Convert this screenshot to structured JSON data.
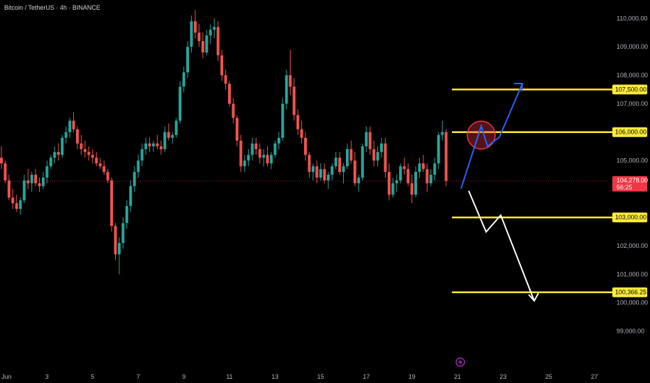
{
  "header": {
    "title": "Bitcoin / TetherUS · 4h · BINANCE"
  },
  "colors": {
    "up": "#26a69a",
    "down": "#ef5350",
    "level": "#ffeb3b",
    "bull_path": "#2962ff",
    "bear_path": "#ffffff",
    "marker": "#f23645",
    "current": "#f23645"
  },
  "current_price": {
    "price": "104,278.00",
    "countdown": "56:25",
    "value": 104278
  },
  "chart_data": {
    "type": "candlestick",
    "symbol": "BTCUSDT",
    "timeframe": "4h",
    "exchange": "BINANCE",
    "ylim": [
      98400,
      110500
    ],
    "price_ticks": [
      {
        "value": 110000,
        "label": "110,000.00"
      },
      {
        "value": 109000,
        "label": "109,000.00"
      },
      {
        "value": 108000,
        "label": "108,000.00"
      },
      {
        "value": 107000,
        "label": "107,000.00"
      },
      {
        "value": 105000,
        "label": "105,000.00"
      },
      {
        "value": 102000,
        "label": "102,000.00"
      },
      {
        "value": 101000,
        "label": "101,000.00"
      },
      {
        "value": 100000,
        "label": "100,000.00"
      },
      {
        "value": 99000,
        "label": "99,000.00"
      }
    ],
    "time_ticks": [
      {
        "index": 0,
        "label": "Jun"
      },
      {
        "index": 12,
        "label": "3"
      },
      {
        "index": 24,
        "label": "5"
      },
      {
        "index": 36,
        "label": "7"
      },
      {
        "index": 48,
        "label": "9"
      },
      {
        "index": 60,
        "label": "11"
      },
      {
        "index": 72,
        "label": "13"
      },
      {
        "index": 84,
        "label": "15"
      },
      {
        "index": 96,
        "label": "17"
      },
      {
        "index": 108,
        "label": "19"
      },
      {
        "index": 120,
        "label": "21"
      },
      {
        "index": 132,
        "label": "23"
      },
      {
        "index": 144,
        "label": "25"
      },
      {
        "index": 156,
        "label": "27"
      }
    ],
    "levels": [
      {
        "value": 107500,
        "label": "107,500.00"
      },
      {
        "value": 106000,
        "label": "106,000.00"
      },
      {
        "value": 103000,
        "label": "103,000.00"
      },
      {
        "value": 100366.25,
        "label": "100,366.25"
      }
    ],
    "candles_ohlc": [
      [
        105100,
        105500,
        104700,
        104900
      ],
      [
        104900,
        105000,
        104200,
        104300
      ],
      [
        104300,
        104500,
        103600,
        103700
      ],
      [
        103700,
        104000,
        103300,
        103500
      ],
      [
        103500,
        103800,
        103200,
        103300
      ],
      [
        103300,
        103700,
        103100,
        103600
      ],
      [
        103600,
        104500,
        103500,
        104300
      ],
      [
        104300,
        104700,
        104000,
        104200
      ],
      [
        104200,
        104600,
        103900,
        104500
      ],
      [
        104500,
        104700,
        104100,
        104200
      ],
      [
        104200,
        104400,
        103900,
        104100
      ],
      [
        104100,
        104600,
        104000,
        104400
      ],
      [
        104400,
        105000,
        104200,
        104800
      ],
      [
        104800,
        105200,
        104700,
        105100
      ],
      [
        105100,
        105500,
        104900,
        105300
      ],
      [
        105300,
        105600,
        105000,
        105200
      ],
      [
        105200,
        105900,
        105100,
        105800
      ],
      [
        105800,
        106200,
        105600,
        106000
      ],
      [
        106000,
        106500,
        105800,
        106400
      ],
      [
        106400,
        106700,
        106000,
        106100
      ],
      [
        106100,
        106200,
        105400,
        105600
      ],
      [
        105600,
        105900,
        105200,
        105400
      ],
      [
        105400,
        105700,
        105100,
        105300
      ],
      [
        105300,
        105500,
        105000,
        105200
      ],
      [
        105200,
        105400,
        104900,
        105100
      ],
      [
        105100,
        105300,
        104800,
        104900
      ],
      [
        104900,
        105100,
        104700,
        104800
      ],
      [
        104800,
        105000,
        104500,
        104600
      ],
      [
        104600,
        104700,
        104200,
        104300
      ],
      [
        104300,
        104400,
        102500,
        102700
      ],
      [
        102700,
        102800,
        101500,
        101700
      ],
      [
        101700,
        102300,
        101000,
        102100
      ],
      [
        102100,
        103000,
        101900,
        102800
      ],
      [
        102800,
        103600,
        102600,
        103400
      ],
      [
        103400,
        104300,
        103200,
        104100
      ],
      [
        104100,
        104800,
        103900,
        104600
      ],
      [
        104600,
        105200,
        104400,
        105000
      ],
      [
        105000,
        105600,
        104800,
        105400
      ],
      [
        105400,
        105800,
        105200,
        105600
      ],
      [
        105600,
        105800,
        105300,
        105500
      ],
      [
        105500,
        105700,
        105300,
        105600
      ],
      [
        105600,
        105900,
        105400,
        105500
      ],
      [
        105500,
        105700,
        105200,
        105400
      ],
      [
        105400,
        106200,
        105300,
        106000
      ],
      [
        106000,
        106300,
        105700,
        105800
      ],
      [
        105800,
        106000,
        105600,
        105900
      ],
      [
        105900,
        106500,
        105800,
        106400
      ],
      [
        106400,
        107800,
        106300,
        107600
      ],
      [
        107600,
        108300,
        107400,
        108100
      ],
      [
        108100,
        109200,
        107900,
        109000
      ],
      [
        109000,
        110100,
        108800,
        109900
      ],
      [
        109900,
        110300,
        109300,
        109500
      ],
      [
        109500,
        109800,
        109000,
        109200
      ],
      [
        109200,
        109500,
        108600,
        108800
      ],
      [
        108800,
        109600,
        108700,
        109400
      ],
      [
        109400,
        109800,
        109100,
        109600
      ],
      [
        109600,
        110000,
        109300,
        109700
      ],
      [
        109700,
        109900,
        108500,
        108700
      ],
      [
        108700,
        108900,
        107800,
        108000
      ],
      [
        108000,
        108200,
        107500,
        107700
      ],
      [
        107700,
        107800,
        106900,
        107000
      ],
      [
        107000,
        107200,
        106300,
        106500
      ],
      [
        106500,
        106600,
        105500,
        105700
      ],
      [
        105700,
        105900,
        104600,
        104800
      ],
      [
        104800,
        105200,
        104600,
        105000
      ],
      [
        105000,
        105400,
        104800,
        105200
      ],
      [
        105200,
        105800,
        105000,
        105600
      ],
      [
        105600,
        105800,
        105200,
        105400
      ],
      [
        105400,
        105600,
        104900,
        105100
      ],
      [
        105100,
        105400,
        104800,
        105200
      ],
      [
        105200,
        105500,
        104800,
        104900
      ],
      [
        104900,
        105300,
        104700,
        105200
      ],
      [
        105200,
        105700,
        105100,
        105600
      ],
      [
        105600,
        106000,
        105400,
        105800
      ],
      [
        105800,
        107200,
        105700,
        107000
      ],
      [
        107000,
        108200,
        106800,
        108000
      ],
      [
        108000,
        108900,
        107300,
        107600
      ],
      [
        107600,
        107900,
        106400,
        106600
      ],
      [
        106600,
        106800,
        105900,
        106100
      ],
      [
        106100,
        106400,
        105600,
        105800
      ],
      [
        105800,
        106000,
        105000,
        105200
      ],
      [
        105200,
        105300,
        104400,
        104600
      ],
      [
        104600,
        104900,
        104300,
        104800
      ],
      [
        104800,
        105000,
        104200,
        104400
      ],
      [
        104400,
        104900,
        104300,
        104700
      ],
      [
        104700,
        104900,
        104200,
        104300
      ],
      [
        104300,
        104600,
        104000,
        104500
      ],
      [
        104500,
        104900,
        104300,
        104800
      ],
      [
        104800,
        105300,
        104700,
        105100
      ],
      [
        105100,
        105300,
        104500,
        104600
      ],
      [
        104600,
        104900,
        104200,
        104800
      ],
      [
        104800,
        105600,
        104700,
        105400
      ],
      [
        105400,
        105700,
        104900,
        105000
      ],
      [
        105000,
        105300,
        104100,
        104200
      ],
      [
        104200,
        104500,
        103900,
        104400
      ],
      [
        104400,
        105600,
        104300,
        105500
      ],
      [
        105500,
        106200,
        105300,
        106000
      ],
      [
        106000,
        106200,
        105200,
        105400
      ],
      [
        105400,
        105700,
        104800,
        105000
      ],
      [
        105000,
        105500,
        104800,
        105300
      ],
      [
        105300,
        105800,
        105100,
        105600
      ],
      [
        105600,
        105800,
        104400,
        104600
      ],
      [
        104600,
        104900,
        103600,
        103800
      ],
      [
        103800,
        104400,
        103700,
        104200
      ],
      [
        104200,
        104500,
        103900,
        104300
      ],
      [
        104300,
        104900,
        104200,
        104800
      ],
      [
        104800,
        105100,
        104500,
        104700
      ],
      [
        104700,
        104900,
        104100,
        104200
      ],
      [
        104200,
        104500,
        103500,
        103800
      ],
      [
        103800,
        104800,
        103700,
        104600
      ],
      [
        104600,
        105100,
        104400,
        104900
      ],
      [
        104900,
        105200,
        104600,
        104700
      ],
      [
        104700,
        104900,
        103900,
        104200
      ],
      [
        104200,
        104700,
        104100,
        104500
      ],
      [
        104500,
        105100,
        104300,
        104900
      ],
      [
        104900,
        106000,
        104700,
        105900
      ],
      [
        105900,
        106400,
        105700,
        106000
      ],
      [
        106000,
        106100,
        104100,
        104278
      ]
    ]
  }
}
